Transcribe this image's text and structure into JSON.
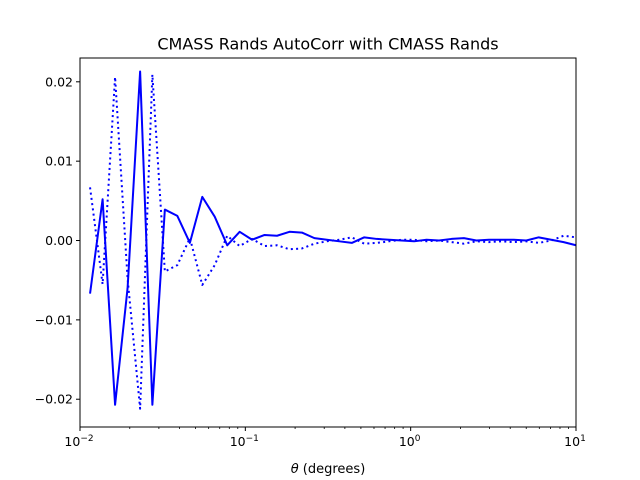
{
  "chart_data": {
    "type": "line",
    "title": "CMASS Rands AutoCorr with CMASS Rands",
    "xlabel": "θ (degrees)",
    "xlabel_symbol": "θ",
    "xlabel_rest": " (degrees)",
    "ylabel": "",
    "xscale": "log",
    "xlim": [
      0.01,
      10
    ],
    "ylim": [
      -0.0235,
      0.023
    ],
    "grid": false,
    "line_color": "#0000ff",
    "x_ticks": [
      {
        "value": 0.01,
        "base": "10",
        "exp": "−2"
      },
      {
        "value": 0.1,
        "base": "10",
        "exp": "−1"
      },
      {
        "value": 1,
        "base": "10",
        "exp": "0"
      },
      {
        "value": 10,
        "base": "10",
        "exp": "1"
      }
    ],
    "y_ticks": [
      {
        "value": 0.02,
        "label": "0.02"
      },
      {
        "value": 0.01,
        "label": "0.01"
      },
      {
        "value": 0.0,
        "label": "0.00"
      },
      {
        "value": -0.01,
        "label": "−0.01"
      },
      {
        "value": -0.02,
        "label": "−0.02"
      }
    ],
    "x": [
      0.0115,
      0.0137,
      0.0163,
      0.0194,
      0.0231,
      0.0274,
      0.0326,
      0.0388,
      0.0462,
      0.0549,
      0.0653,
      0.0777,
      0.0924,
      0.1099,
      0.1307,
      0.1555,
      0.185,
      0.22,
      0.2617,
      0.3113,
      0.3703,
      0.4405,
      0.524,
      0.6233,
      0.7414,
      0.8819,
      1.049,
      1.248,
      1.484,
      1.766,
      2.1,
      2.498,
      2.972,
      3.535,
      4.205,
      5.002,
      5.95,
      7.078,
      8.419,
      10.0
    ],
    "series": [
      {
        "style": "solid",
        "values": [
          -0.0067,
          0.0052,
          -0.0207,
          -0.006,
          0.0213,
          -0.0207,
          0.0039,
          0.0031,
          -0.0003,
          0.0055,
          0.003,
          -0.0006,
          0.0011,
          0.0001,
          0.0007,
          0.0006,
          0.0011,
          0.001,
          0.0003,
          0.0001,
          -0.0001,
          -0.0003,
          0.0004,
          0.0002,
          0.0001,
          0.0,
          -0.0001,
          0.0001,
          0.0,
          0.0002,
          0.0003,
          0.0,
          0.0001,
          0.0001,
          0.0001,
          0.0,
          0.0004,
          0.0001,
          -0.0002,
          -0.0006
        ]
      },
      {
        "style": "dotted",
        "values": [
          0.0067,
          -0.0055,
          0.0206,
          -0.0048,
          -0.0212,
          0.0209,
          -0.0039,
          -0.0031,
          0.0003,
          -0.0056,
          -0.0031,
          0.0006,
          -0.0007,
          0.0002,
          -0.0007,
          -0.0006,
          -0.0011,
          -0.001,
          -0.0004,
          -0.0001,
          0.0001,
          0.0004,
          -0.0004,
          -0.0003,
          -0.0001,
          0.0001,
          0.0001,
          -0.0001,
          0.0,
          -0.0002,
          -0.0004,
          -0.0001,
          -0.0002,
          -0.0001,
          -0.0002,
          -0.0001,
          -0.0003,
          0.0,
          0.0006,
          0.0004
        ]
      }
    ]
  }
}
